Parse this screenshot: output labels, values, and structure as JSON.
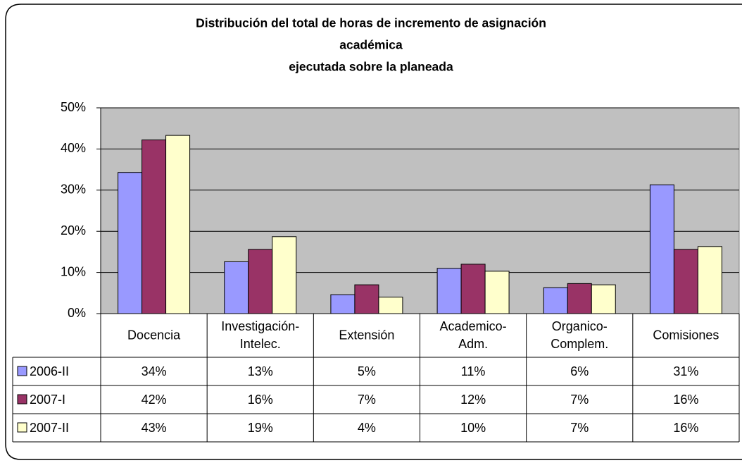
{
  "chart_data": {
    "type": "bar",
    "title": "Distribución del total de horas de incremento de asignación académica\nejecutada sobre la planeada",
    "categories": [
      "Docencia",
      "Investigación-\nIntelec.",
      "Extensión",
      "Academico-\nAdm.",
      "Organico-\nComplem.",
      "Comisiones"
    ],
    "series": [
      {
        "name": "2006-II",
        "color": "#9999ff",
        "values": [
          34.3,
          12.6,
          4.6,
          11.0,
          6.3,
          31.3
        ],
        "value_labels": [
          "34%",
          "13%",
          "5%",
          "11%",
          "6%",
          "31%"
        ]
      },
      {
        "name": "2007-I",
        "color": "#993366",
        "values": [
          42.2,
          15.6,
          7.0,
          12.0,
          7.3,
          15.6
        ],
        "value_labels": [
          "42%",
          "16%",
          "7%",
          "12%",
          "7%",
          "16%"
        ]
      },
      {
        "name": "2007-II",
        "color": "#ffffcc",
        "values": [
          43.3,
          18.7,
          4.0,
          10.3,
          7.0,
          16.3
        ],
        "value_labels": [
          "43%",
          "19%",
          "4%",
          "10%",
          "7%",
          "16%"
        ]
      }
    ],
    "ylim": [
      0,
      50
    ],
    "yticks": [
      {
        "value": 0,
        "label": "0%"
      },
      {
        "value": 10,
        "label": "10%"
      },
      {
        "value": 20,
        "label": "20%"
      },
      {
        "value": 30,
        "label": "30%"
      },
      {
        "value": 40,
        "label": "40%"
      },
      {
        "value": 50,
        "label": "50%"
      }
    ],
    "grid": true,
    "plot_background": "#c0c0c0"
  }
}
